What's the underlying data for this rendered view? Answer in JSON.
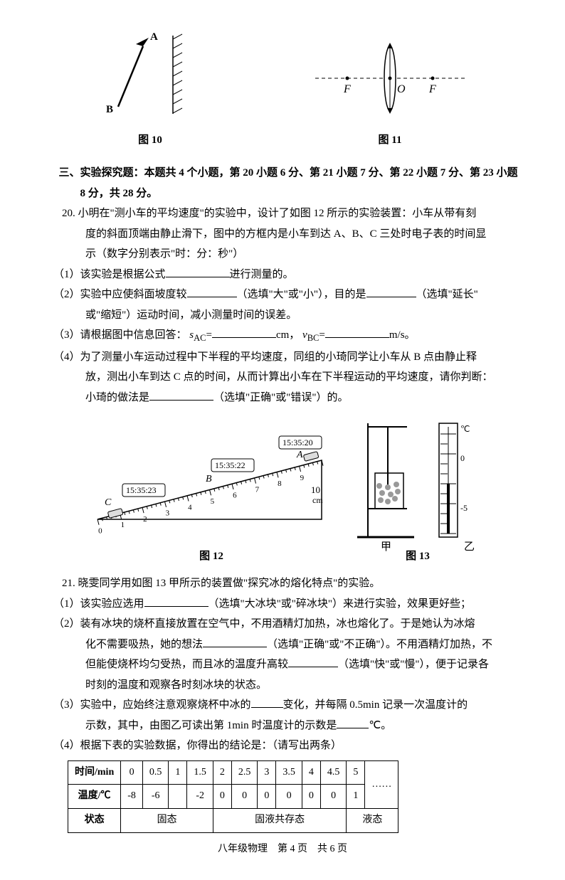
{
  "fig10": {
    "label": "图 10",
    "A": "A",
    "B": "B"
  },
  "fig11": {
    "label": "图 11",
    "F1": "F",
    "F2": "F",
    "O": "O"
  },
  "section3_title": "三、实验探究题：本题共 4 个小题，第 20 小题 6 分、第 21 小题 7 分、第 22 小题 7 分、第 23 小题 8 分，共 28 分。",
  "q20": {
    "num": "20.",
    "stem1": "小明在\"测小车的平均速度\"的实验中，设计了如图 12 所示的实验装置：小车从带有刻",
    "stem2": "度的斜面顶端由静止滑下，图中的方框内是小车到达 A、B、C 三处时电子表的时间显",
    "stem3": "示（数字分别表示\"时：分：秒\"）",
    "p1a": "（1）该实验是根据公式",
    "p1b": "进行测量的。",
    "p2a": "（2）实验中应使斜面坡度较",
    "p2b": "（选填\"大\"或\"小\"），目的是",
    "p2c": "（选填\"延长\"",
    "p2d": "或\"缩短\"）运动时间，减小测量时间的误差。",
    "p3a": "（3）请根据图中信息回答：",
    "p3b": "cm，",
    "p3c": "m/s。",
    "sac": "s",
    "ac": "AC",
    "vbc": "v",
    "bc": "BC",
    "p4a": "（4）为了测量小车运动过程中下半程的平均速度，同组的小琦同学让小车从 B 点由静止释",
    "p4b": "放，测出小车到达 C 点的时间，从而计算出小车在下半程运动的平均速度，请你判断：",
    "p4c": "小琦的做法是",
    "p4d": "（选填\"正确\"或\"错误\"）的。"
  },
  "fig12": {
    "label": "图 12",
    "timeA": "15:35:20",
    "timeB": "15:35:22",
    "timeC": "15:35:23",
    "A": "A",
    "B": "B",
    "C": "C",
    "ticks": [
      "0",
      "1",
      "2",
      "3",
      "4",
      "5",
      "6",
      "7",
      "8",
      "9",
      "10"
    ],
    "unit": "cm"
  },
  "fig13": {
    "label": "图 13",
    "jia": "甲",
    "yi": "乙",
    "deg": "℃",
    "ticks": [
      "0",
      "-5"
    ]
  },
  "q21": {
    "num": "21.",
    "stem": "晓雯同学用如图 13 甲所示的装置做\"探究冰的熔化特点\"的实验。",
    "p1a": "（1）该实验应选用",
    "p1b": "（选填\"大冰块\"或\"碎冰块\"）来进行实验，效果更好些；",
    "p2a": "（2）装有冰块的烧杯直接放置在空气中，不用酒精灯加热，冰也熔化了。于是她认为冰熔",
    "p2b": "化不需要吸热，她的想法",
    "p2c": "（选填\"正确\"或\"不正确\"）。不用酒精灯加热，不",
    "p2d": "但能使烧杯均匀受热，而且冰的温度升高较",
    "p2e": "（选填\"快\"或\"慢\"），便于记录各",
    "p2f": "时刻的温度和观察各时刻冰块的状态。",
    "p3a": "（3）实验中，应始终注意观察烧杯中冰的",
    "p3b": "变化，并每隔 0.5min 记录一次温度计的",
    "p3c": "示数，其中，由图乙可读出第 1min 时温度计的示数是",
    "p3d": "℃。",
    "p4": "（4）根据下表的实验数据，你得出的结论是：（请写出两条）"
  },
  "table": {
    "h1": "时间/min",
    "h2": "温度/℃",
    "h3": "状态",
    "times": [
      "0",
      "0.5",
      "1",
      "1.5",
      "2",
      "2.5",
      "3",
      "3.5",
      "4",
      "4.5",
      "5",
      ""
    ],
    "temps": [
      "-8",
      "-6",
      "",
      "-2",
      "0",
      "0",
      "0",
      "0",
      "0",
      "0",
      "1",
      "……"
    ],
    "state1": "固态",
    "state2": "固液共存态",
    "state3": "液态"
  },
  "footer": "八年级物理　第 4 页　共 6 页"
}
